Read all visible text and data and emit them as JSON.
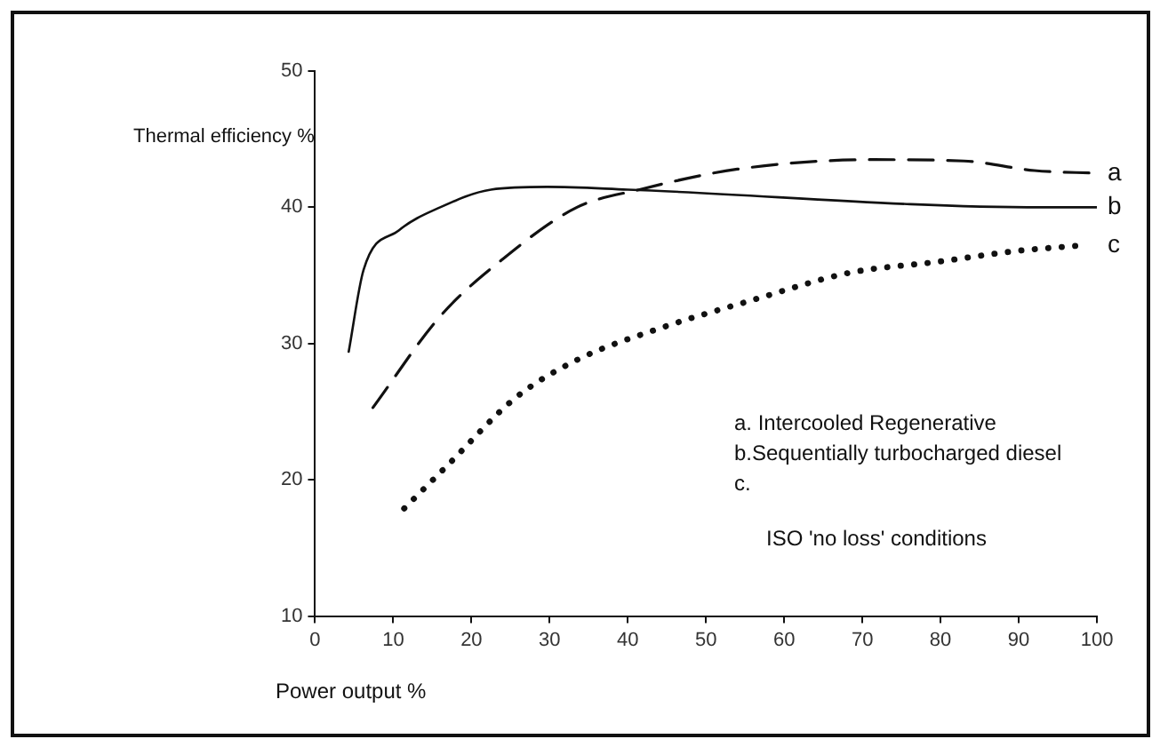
{
  "chart_data": {
    "type": "line",
    "xlabel": "Power output %",
    "ylabel": "Thermal efficiency %",
    "xlim": [
      0,
      100
    ],
    "ylim": [
      10,
      50
    ],
    "xticks": [
      0,
      10,
      20,
      30,
      40,
      50,
      60,
      70,
      80,
      90,
      100
    ],
    "yticks": [
      10,
      20,
      30,
      40,
      50
    ],
    "grid": false,
    "legend": false,
    "marker": "none",
    "series": [
      {
        "name": "a",
        "color": "#111111",
        "line_style": "dashed",
        "x": [
          7.4,
          16,
          24,
          33.5,
          41.5,
          54,
          71.5,
          83,
          92,
          100
        ],
        "values": [
          25.3,
          32,
          36.2,
          40,
          41.3,
          42.8,
          43.5,
          43.4,
          42.7,
          42.5
        ]
      },
      {
        "name": "b",
        "color": "#111111",
        "line_style": "solid",
        "x": [
          4.3,
          6.2,
          10.7,
          16,
          22.5,
          29.7,
          40,
          93,
          100
        ],
        "values": [
          29.4,
          35.4,
          38.3,
          40,
          41.3,
          41.5,
          41.3,
          40,
          40
        ]
      },
      {
        "name": "c",
        "color": "#111111",
        "line_style": "dotted",
        "x": [
          11.4,
          17,
          25.6,
          33.5,
          44,
          56,
          68.4,
          79.6,
          89.8,
          98
        ],
        "values": [
          17.9,
          21.1,
          26,
          28.8,
          31.1,
          33.2,
          35.2,
          36,
          36.8,
          37.2
        ]
      }
    ],
    "annotations": [
      "a. Intercooled Regenerative",
      "b.Sequentially turbocharged diesel",
      "c.",
      "ISO 'no loss' conditions"
    ]
  }
}
